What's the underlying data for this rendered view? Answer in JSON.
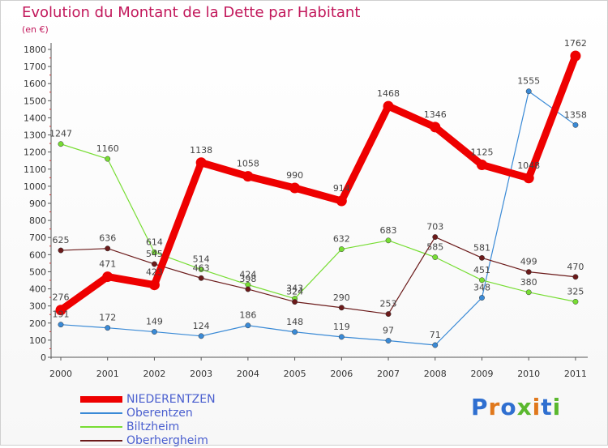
{
  "title": "Evolution du Montant de la Dette par Habitant",
  "subtitle": "(en €)",
  "logo_text": "Proxiti",
  "chart_data": {
    "type": "line",
    "title": "Evolution du Montant de la Dette par Habitant",
    "subtitle": "(en €)",
    "ylim": [
      0,
      1800
    ],
    "ytick_step": 100,
    "categories": [
      "2000",
      "2001",
      "2002",
      "2003",
      "2004",
      "2005",
      "2006",
      "2007",
      "2008",
      "2009",
      "2010",
      "2011"
    ],
    "series": [
      {
        "name": "NIEDERENTZEN",
        "color": "#ee0000",
        "bold": true,
        "values": [
          276,
          471,
          423,
          1138,
          1058,
          990,
          914,
          1468,
          1346,
          1125,
          1048,
          1762
        ],
        "labels": [
          "276",
          "471",
          "423",
          "1138",
          "1058",
          "990",
          "914",
          "1468",
          "1346",
          "1125",
          "1048",
          "1762"
        ]
      },
      {
        "name": "Oberentzen",
        "color": "#3a8ad6",
        "values": [
          191,
          172,
          149,
          124,
          186,
          148,
          119,
          97,
          71,
          348,
          1555,
          1358
        ],
        "labels": [
          "191",
          "172",
          "149",
          "124",
          "186",
          "148",
          "119",
          "97",
          "71",
          "348",
          "1555",
          "1358"
        ]
      },
      {
        "name": "Biltzheim",
        "color": "#77dd33",
        "values": [
          1247,
          1160,
          614,
          514,
          424,
          343,
          632,
          683,
          585,
          451,
          380,
          325
        ],
        "labels": [
          "1247",
          "1160",
          "614",
          "514",
          "424",
          "343",
          "632",
          "683",
          "585",
          "451",
          "380",
          "325"
        ]
      },
      {
        "name": "Oberhergheim",
        "color": "#6b1a1a",
        "values": [
          625,
          636,
          545,
          463,
          398,
          324,
          290,
          253,
          703,
          581,
          499,
          470
        ],
        "labels": [
          "625",
          "636",
          "545",
          "463",
          "398",
          "324",
          "290",
          "253",
          "703",
          "581",
          "499",
          "470"
        ]
      }
    ],
    "grid": false,
    "legend": "bottom-left"
  }
}
